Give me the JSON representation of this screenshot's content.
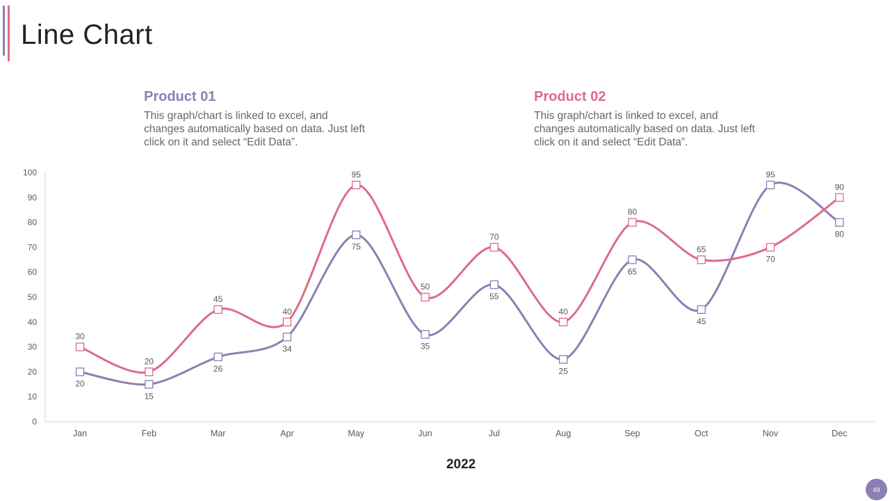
{
  "slide": {
    "title": "Line Chart",
    "page_number": "49"
  },
  "colors": {
    "product01": "#8b7fb3",
    "product02": "#dd6a8c",
    "badge": "#8b7fb3"
  },
  "legend": {
    "product01": {
      "title": "Product 01",
      "text": "This graph/chart is linked to excel, and changes automatically based on data. Just left click on it and select “Edit Data”."
    },
    "product02": {
      "title": "Product 02",
      "text": "This graph/chart is linked to excel, and changes automatically based on data. Just left click on it and select “Edit Data”."
    }
  },
  "chart_data": {
    "type": "line",
    "title": "",
    "xlabel": "2022",
    "ylabel": "",
    "ylim": [
      0,
      100
    ],
    "yticks": [
      0,
      10,
      20,
      30,
      40,
      50,
      60,
      70,
      80,
      90,
      100
    ],
    "categories": [
      "Jan",
      "Feb",
      "Mar",
      "Apr",
      "May",
      "Jun",
      "Jul",
      "Aug",
      "Sep",
      "Oct",
      "Nov",
      "Dec"
    ],
    "series": [
      {
        "name": "Product 01",
        "values": [
          20,
          15,
          26,
          34,
          75,
          35,
          55,
          25,
          65,
          45,
          95,
          80
        ]
      },
      {
        "name": "Product 02",
        "values": [
          30,
          20,
          45,
          40,
          95,
          50,
          70,
          40,
          80,
          65,
          70,
          90
        ]
      }
    ],
    "smooth": true,
    "markers": "square"
  }
}
